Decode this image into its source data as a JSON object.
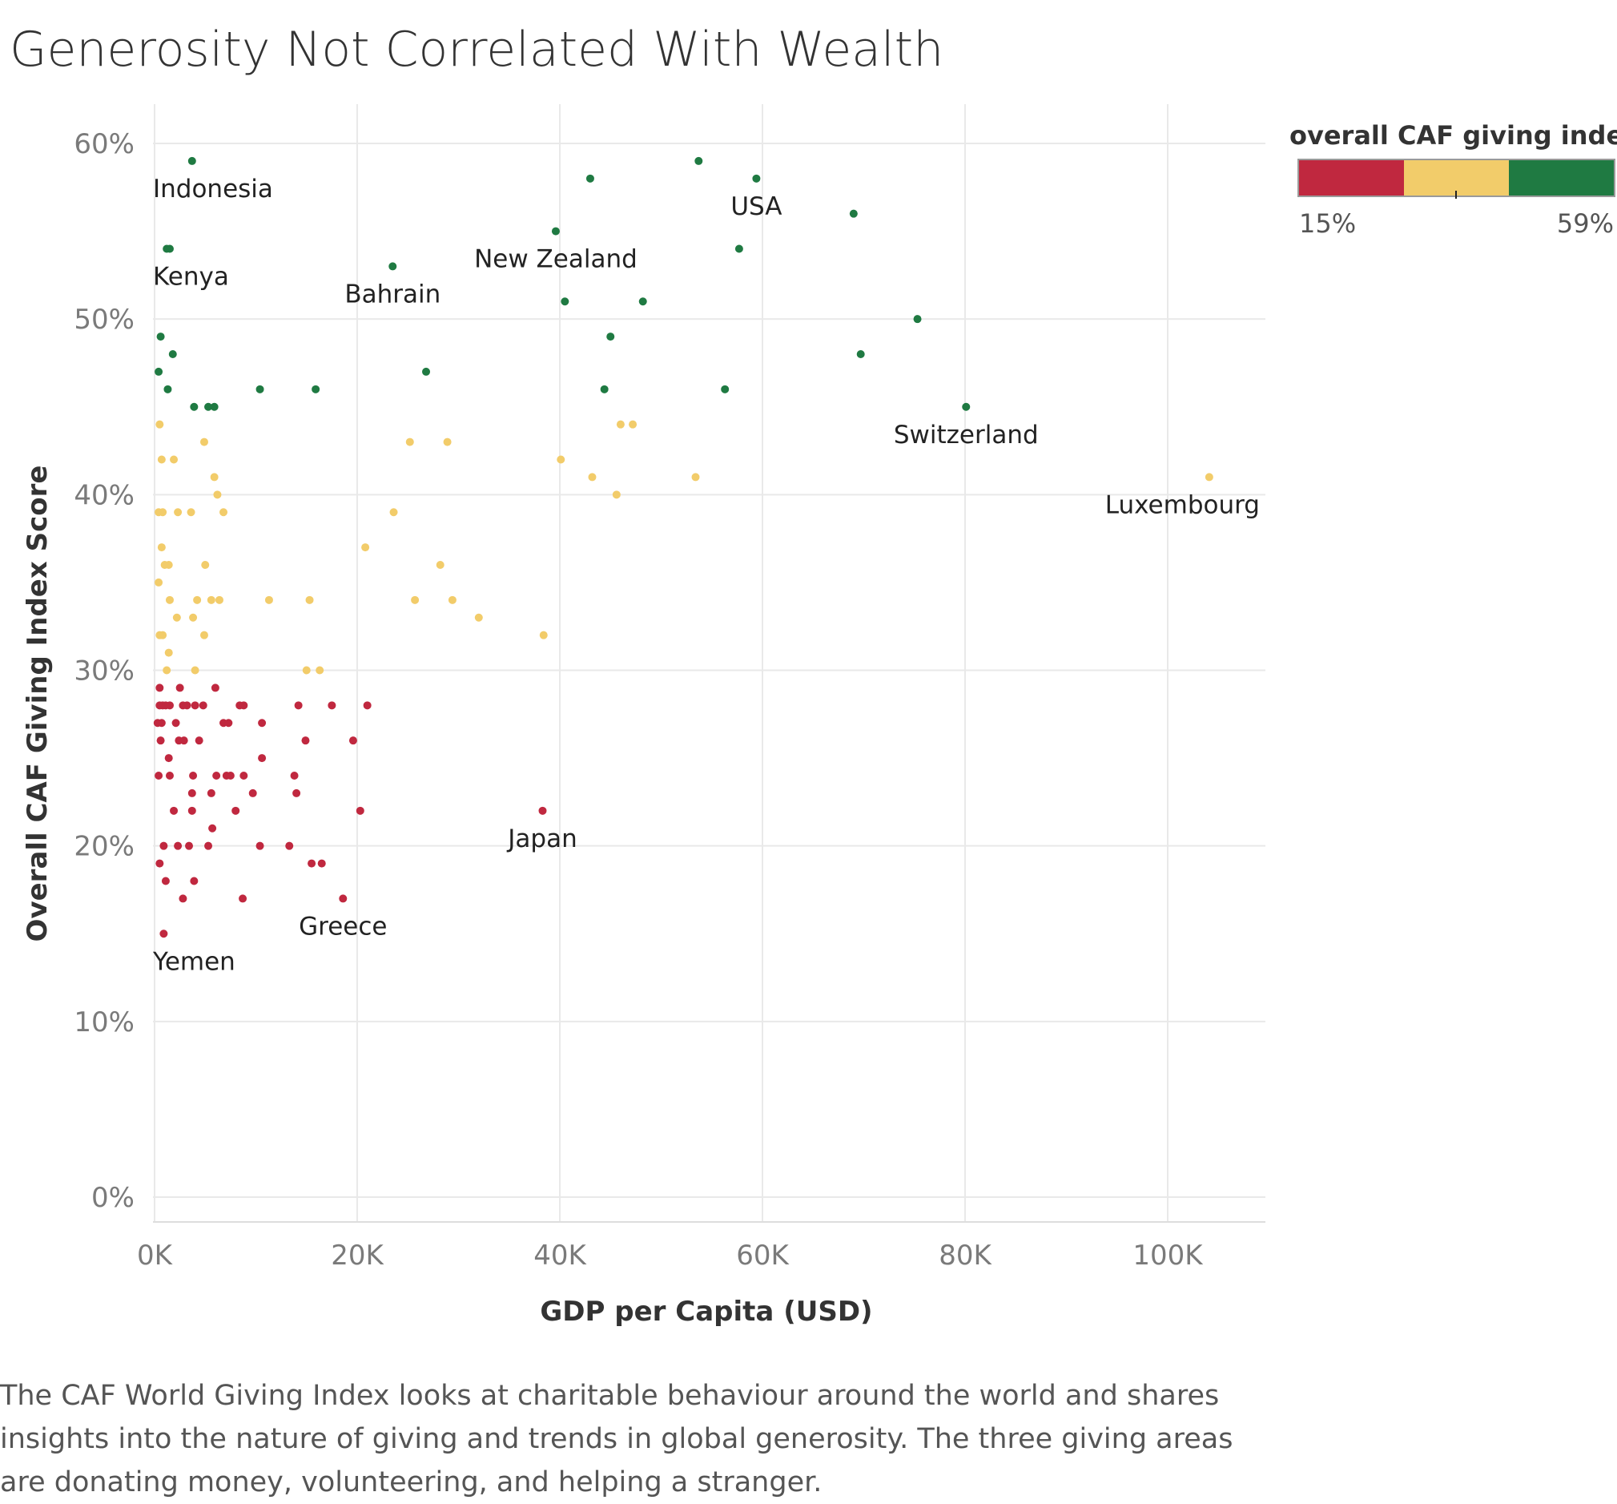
{
  "chart_data": {
    "type": "scatter",
    "title": "Generosity Not Correlated With Wealth",
    "xlabel": "GDP per Capita (USD)",
    "ylabel": "Overall CAF Giving Index Score",
    "xlim": [
      0,
      110000
    ],
    "ylim": [
      0,
      62
    ],
    "x_ticks": [
      0,
      20000,
      40000,
      60000,
      80000,
      100000
    ],
    "x_tick_labels": [
      "0K",
      "20K",
      "40K",
      "60K",
      "80K",
      "100K"
    ],
    "y_ticks": [
      0,
      10,
      20,
      30,
      40,
      50,
      60
    ],
    "y_tick_labels": [
      "0%",
      "10%",
      "20%",
      "30%",
      "40%",
      "50%",
      "60%"
    ],
    "grid": true,
    "color_legend": {
      "title": "overall CAF giving inde..",
      "min_label": "15%",
      "max_label": "59%",
      "colors": [
        "#c0283f",
        "#f2cc6a",
        "#1f7a42"
      ],
      "position": "top-right"
    },
    "points": [
      [
        3700,
        59,
        "high"
      ],
      [
        43000,
        58,
        "high"
      ],
      [
        53700,
        59,
        "high"
      ],
      [
        59400,
        58,
        "high"
      ],
      [
        1200,
        54,
        "high"
      ],
      [
        1500,
        54,
        "high"
      ],
      [
        39600,
        55,
        "high"
      ],
      [
        57700,
        54,
        "high"
      ],
      [
        69000,
        56,
        "high"
      ],
      [
        23500,
        53,
        "high"
      ],
      [
        40500,
        51,
        "high"
      ],
      [
        48200,
        51,
        "high"
      ],
      [
        75300,
        50,
        "high"
      ],
      [
        600,
        49,
        "high"
      ],
      [
        1800,
        48,
        "high"
      ],
      [
        45000,
        49,
        "high"
      ],
      [
        69700,
        48,
        "high"
      ],
      [
        400,
        47,
        "high"
      ],
      [
        26800,
        47,
        "high"
      ],
      [
        1300,
        46,
        "high"
      ],
      [
        10400,
        46,
        "high"
      ],
      [
        15900,
        46,
        "high"
      ],
      [
        44400,
        46,
        "high"
      ],
      [
        56300,
        46,
        "high"
      ],
      [
        3900,
        45,
        "high"
      ],
      [
        5300,
        45,
        "high"
      ],
      [
        5900,
        45,
        "high"
      ],
      [
        80100,
        45,
        "high"
      ],
      [
        500,
        44,
        "mid"
      ],
      [
        46000,
        44,
        "mid"
      ],
      [
        47200,
        44,
        "mid"
      ],
      [
        4900,
        43,
        "mid"
      ],
      [
        25200,
        43,
        "mid"
      ],
      [
        28900,
        43,
        "mid"
      ],
      [
        700,
        42,
        "mid"
      ],
      [
        1900,
        42,
        "mid"
      ],
      [
        40100,
        42,
        "mid"
      ],
      [
        5900,
        41,
        "mid"
      ],
      [
        43200,
        41,
        "mid"
      ],
      [
        53400,
        41,
        "mid"
      ],
      [
        104100,
        41,
        "mid"
      ],
      [
        6200,
        40,
        "mid"
      ],
      [
        45600,
        40,
        "mid"
      ],
      [
        400,
        39,
        "mid"
      ],
      [
        800,
        39,
        "mid"
      ],
      [
        2300,
        39,
        "mid"
      ],
      [
        3600,
        39,
        "mid"
      ],
      [
        6800,
        39,
        "mid"
      ],
      [
        23600,
        39,
        "mid"
      ],
      [
        700,
        37,
        "mid"
      ],
      [
        20800,
        37,
        "mid"
      ],
      [
        1000,
        36,
        "mid"
      ],
      [
        1400,
        36,
        "mid"
      ],
      [
        5000,
        36,
        "mid"
      ],
      [
        28200,
        36,
        "mid"
      ],
      [
        400,
        35,
        "mid"
      ],
      [
        1500,
        34,
        "mid"
      ],
      [
        4200,
        34,
        "mid"
      ],
      [
        5600,
        34,
        "mid"
      ],
      [
        6400,
        34,
        "mid"
      ],
      [
        11300,
        34,
        "mid"
      ],
      [
        15300,
        34,
        "mid"
      ],
      [
        25700,
        34,
        "mid"
      ],
      [
        29400,
        34,
        "mid"
      ],
      [
        2200,
        33,
        "mid"
      ],
      [
        3800,
        33,
        "mid"
      ],
      [
        32000,
        33,
        "mid"
      ],
      [
        500,
        32,
        "mid"
      ],
      [
        800,
        32,
        "mid"
      ],
      [
        4900,
        32,
        "mid"
      ],
      [
        38400,
        32,
        "mid"
      ],
      [
        1400,
        31,
        "mid"
      ],
      [
        1200,
        30,
        "mid"
      ],
      [
        4000,
        30,
        "mid"
      ],
      [
        15000,
        30,
        "mid"
      ],
      [
        16300,
        30,
        "mid"
      ],
      [
        500,
        29,
        "low"
      ],
      [
        2500,
        29,
        "low"
      ],
      [
        6000,
        29,
        "low"
      ],
      [
        500,
        28,
        "low"
      ],
      [
        800,
        28,
        "low"
      ],
      [
        1100,
        28,
        "low"
      ],
      [
        1500,
        28,
        "low"
      ],
      [
        2800,
        28,
        "low"
      ],
      [
        3200,
        28,
        "low"
      ],
      [
        4000,
        28,
        "low"
      ],
      [
        4800,
        28,
        "low"
      ],
      [
        8400,
        28,
        "low"
      ],
      [
        8800,
        28,
        "low"
      ],
      [
        14200,
        28,
        "low"
      ],
      [
        17500,
        28,
        "low"
      ],
      [
        21000,
        28,
        "low"
      ],
      [
        300,
        27,
        "low"
      ],
      [
        700,
        27,
        "low"
      ],
      [
        2100,
        27,
        "low"
      ],
      [
        6800,
        27,
        "low"
      ],
      [
        7300,
        27,
        "low"
      ],
      [
        10600,
        27,
        "low"
      ],
      [
        600,
        26,
        "low"
      ],
      [
        2400,
        26,
        "low"
      ],
      [
        2900,
        26,
        "low"
      ],
      [
        4400,
        26,
        "low"
      ],
      [
        14900,
        26,
        "low"
      ],
      [
        19600,
        26,
        "low"
      ],
      [
        1400,
        25,
        "low"
      ],
      [
        10600,
        25,
        "low"
      ],
      [
        400,
        24,
        "low"
      ],
      [
        1500,
        24,
        "low"
      ],
      [
        3800,
        24,
        "low"
      ],
      [
        6100,
        24,
        "low"
      ],
      [
        7100,
        24,
        "low"
      ],
      [
        7500,
        24,
        "low"
      ],
      [
        8800,
        24,
        "low"
      ],
      [
        13800,
        24,
        "low"
      ],
      [
        3700,
        23,
        "low"
      ],
      [
        5600,
        23,
        "low"
      ],
      [
        9700,
        23,
        "low"
      ],
      [
        14000,
        23,
        "low"
      ],
      [
        1900,
        22,
        "low"
      ],
      [
        3700,
        22,
        "low"
      ],
      [
        8000,
        22,
        "low"
      ],
      [
        20300,
        22,
        "low"
      ],
      [
        38300,
        22,
        "low"
      ],
      [
        5700,
        21,
        "low"
      ],
      [
        900,
        20,
        "low"
      ],
      [
        2300,
        20,
        "low"
      ],
      [
        3400,
        20,
        "low"
      ],
      [
        5300,
        20,
        "low"
      ],
      [
        10400,
        20,
        "low"
      ],
      [
        13300,
        20,
        "low"
      ],
      [
        500,
        19,
        "low"
      ],
      [
        15500,
        19,
        "low"
      ],
      [
        16500,
        19,
        "low"
      ],
      [
        1100,
        18,
        "low"
      ],
      [
        3900,
        18,
        "low"
      ],
      [
        2800,
        17,
        "low"
      ],
      [
        8700,
        17,
        "low"
      ],
      [
        18600,
        17,
        "low"
      ],
      [
        900,
        15,
        "low"
      ]
    ],
    "annotations": [
      {
        "text": "Indonesia",
        "x": 3700,
        "y": 59
      },
      {
        "text": "Kenya",
        "x": 1200,
        "y": 54
      },
      {
        "text": "New Zealand",
        "x": 39600,
        "y": 55
      },
      {
        "text": "USA",
        "x": 59400,
        "y": 58
      },
      {
        "text": "Bahrain",
        "x": 23500,
        "y": 53
      },
      {
        "text": "Switzerland",
        "x": 80100,
        "y": 45
      },
      {
        "text": "Luxembourg",
        "x": 104100,
        "y": 41
      },
      {
        "text": "Japan",
        "x": 38300,
        "y": 22
      },
      {
        "text": "Greece",
        "x": 18600,
        "y": 17
      },
      {
        "text": "Yemen",
        "x": 900,
        "y": 15
      }
    ]
  },
  "caption": "The CAF World Giving Index looks at charitable behaviour around the world and shares insights into the nature of giving and trends in global generosity. The three giving areas are donating money, volunteering, and helping a stranger."
}
